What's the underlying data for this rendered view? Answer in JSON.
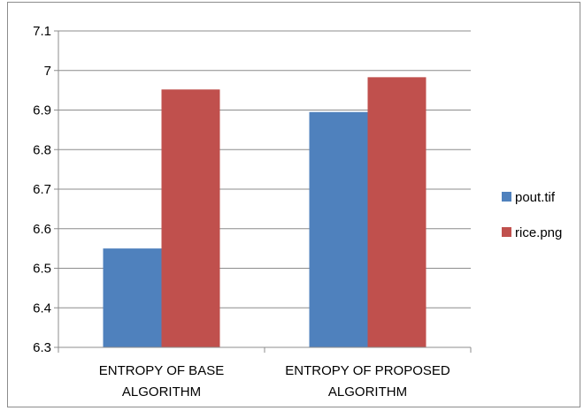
{
  "chart_data": {
    "type": "bar",
    "categories": [
      [
        "ENTROPY OF BASE",
        "ALGORITHM"
      ],
      [
        "ENTROPY OF PROPOSED",
        "ALGORITHM"
      ]
    ],
    "series": [
      {
        "name": "pout.tif",
        "values": [
          6.55,
          6.895
        ],
        "color": "#4f81bd"
      },
      {
        "name": "rice.png",
        "values": [
          6.952,
          6.983
        ],
        "color": "#c0504d"
      }
    ],
    "yticks": [
      "6.3",
      "6.4",
      "6.5",
      "6.6",
      "6.7",
      "6.8",
      "6.9",
      "7",
      "7.1"
    ],
    "ylim": [
      6.3,
      7.1
    ],
    "grid": true,
    "legend": "right"
  }
}
